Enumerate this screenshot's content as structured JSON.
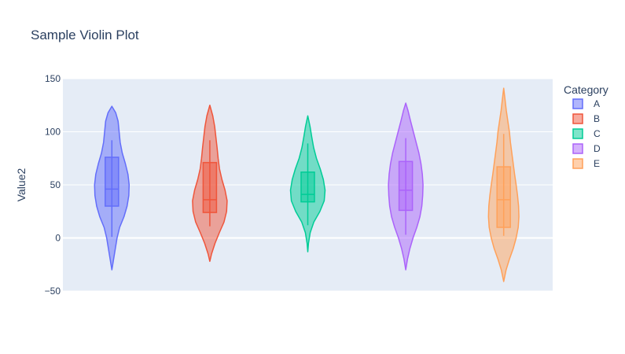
{
  "chart_data": {
    "type": "violin",
    "title": "Sample Violin Plot",
    "xlabel": "",
    "ylabel": "Value2",
    "ylim": [
      -50,
      150
    ],
    "yticks": [
      -50,
      0,
      50,
      100,
      150
    ],
    "ytick_labels": [
      "−50",
      "0",
      "50",
      "100",
      "150"
    ],
    "grid": true,
    "legend_title": "Category",
    "legend_position": "right",
    "plot_background": "#e5ecf6",
    "series": [
      {
        "name": "A",
        "color": "#636efa",
        "box": {
          "q1": 30,
          "median": 46,
          "q3": 76,
          "whisker_low": 1,
          "whisker_high": 92
        },
        "density": [
          [
            -30,
            0
          ],
          [
            -20,
            0.1
          ],
          [
            -10,
            0.2
          ],
          [
            0,
            0.3
          ],
          [
            10,
            0.45
          ],
          [
            20,
            0.7
          ],
          [
            30,
            0.88
          ],
          [
            40,
            0.98
          ],
          [
            50,
            1.0
          ],
          [
            60,
            0.93
          ],
          [
            70,
            0.78
          ],
          [
            80,
            0.6
          ],
          [
            90,
            0.48
          ],
          [
            100,
            0.42
          ],
          [
            110,
            0.36
          ],
          [
            118,
            0.22
          ],
          [
            124,
            0
          ]
        ]
      },
      {
        "name": "B",
        "color": "#ef553b",
        "box": {
          "q1": 24,
          "median": 36,
          "q3": 71,
          "whisker_low": 11,
          "whisker_high": 92
        },
        "density": [
          [
            -22,
            0
          ],
          [
            -15,
            0.1
          ],
          [
            -5,
            0.3
          ],
          [
            5,
            0.55
          ],
          [
            15,
            0.82
          ],
          [
            25,
            0.97
          ],
          [
            35,
            1.0
          ],
          [
            45,
            0.88
          ],
          [
            55,
            0.7
          ],
          [
            65,
            0.56
          ],
          [
            75,
            0.48
          ],
          [
            85,
            0.42
          ],
          [
            95,
            0.35
          ],
          [
            105,
            0.28
          ],
          [
            115,
            0.17
          ],
          [
            125,
            0
          ]
        ]
      },
      {
        "name": "C",
        "color": "#00cc96",
        "box": {
          "q1": 34,
          "median": 41,
          "q3": 62,
          "whisker_low": 12,
          "whisker_high": 89
        },
        "density": [
          [
            -13,
            0
          ],
          [
            -5,
            0.04
          ],
          [
            5,
            0.14
          ],
          [
            15,
            0.35
          ],
          [
            25,
            0.7
          ],
          [
            35,
            0.95
          ],
          [
            45,
            1.0
          ],
          [
            55,
            0.9
          ],
          [
            65,
            0.72
          ],
          [
            75,
            0.5
          ],
          [
            85,
            0.34
          ],
          [
            95,
            0.23
          ],
          [
            105,
            0.13
          ],
          [
            115,
            0
          ]
        ]
      },
      {
        "name": "D",
        "color": "#ab63fa",
        "box": {
          "q1": 26,
          "median": 45,
          "q3": 72,
          "whisker_low": 3,
          "whisker_high": 94
        },
        "density": [
          [
            -30,
            0
          ],
          [
            -20,
            0.1
          ],
          [
            -10,
            0.24
          ],
          [
            0,
            0.42
          ],
          [
            10,
            0.64
          ],
          [
            20,
            0.82
          ],
          [
            30,
            0.93
          ],
          [
            40,
            0.98
          ],
          [
            50,
            1.0
          ],
          [
            60,
            0.96
          ],
          [
            70,
            0.88
          ],
          [
            80,
            0.76
          ],
          [
            90,
            0.6
          ],
          [
            100,
            0.44
          ],
          [
            110,
            0.28
          ],
          [
            120,
            0.13
          ],
          [
            127,
            0
          ]
        ]
      },
      {
        "name": "E",
        "color": "#ffa15a",
        "box": {
          "q1": 10,
          "median": 36,
          "q3": 67,
          "whisker_low": 2,
          "whisker_high": 98
        },
        "density": [
          [
            -41,
            0
          ],
          [
            -30,
            0.14
          ],
          [
            -20,
            0.33
          ],
          [
            -10,
            0.55
          ],
          [
            0,
            0.72
          ],
          [
            10,
            0.84
          ],
          [
            20,
            0.88
          ],
          [
            30,
            0.86
          ],
          [
            40,
            0.8
          ],
          [
            50,
            0.72
          ],
          [
            60,
            0.63
          ],
          [
            70,
            0.55
          ],
          [
            80,
            0.47
          ],
          [
            90,
            0.39
          ],
          [
            100,
            0.33
          ],
          [
            110,
            0.24
          ],
          [
            120,
            0.15
          ],
          [
            130,
            0.08
          ],
          [
            141,
            0
          ]
        ]
      }
    ]
  }
}
